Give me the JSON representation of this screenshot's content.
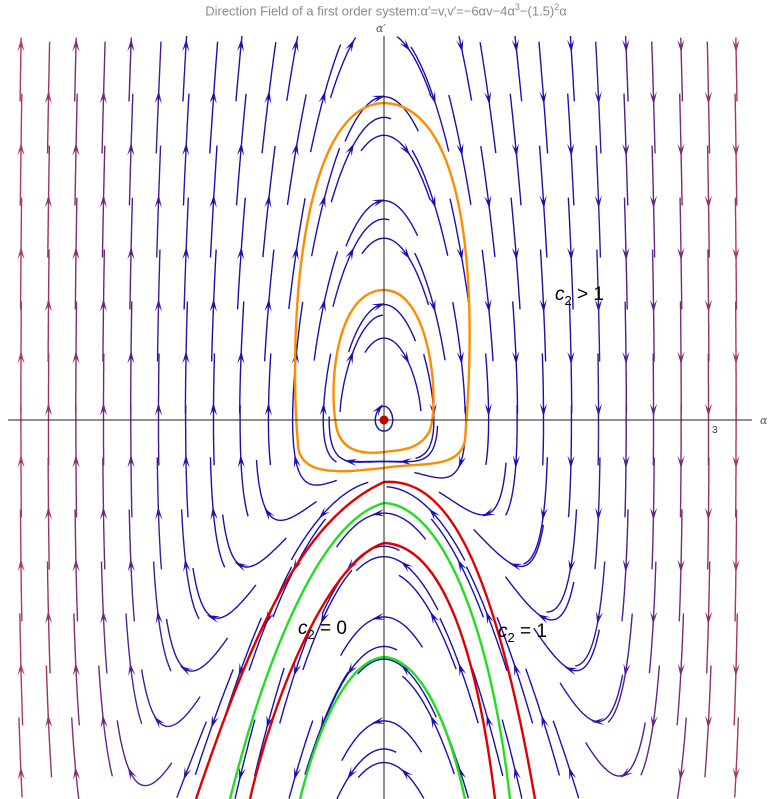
{
  "title_text": "Direction Field of a first order system:α′=v,v′=−6αv−4α³−(1.5)²α",
  "chart_data": {
    "type": "stream-plot",
    "title": "Direction Field of a first order system:α′=v,v′=−6αv−4α³−(1.5)²α",
    "system": {
      "dx": "v",
      "dv": "-6*a*v - 4*a^3 - 2.25*a"
    },
    "xlabel": "α",
    "ylabel": "α′",
    "x_range": [
      -3.6,
      3.5
    ],
    "y_range": [
      -3.7,
      3.7
    ],
    "x_ticks": [
      3
    ],
    "critical_point": [
      0,
      0
    ],
    "annotations": [
      {
        "text": "c₂ > 1",
        "x": 2.0,
        "y": 1.2
      },
      {
        "text": "c₂ = 0",
        "x": -0.8,
        "y": -2.0
      },
      {
        "text": "c₂ = 1",
        "x": 1.2,
        "y": -2.05
      }
    ],
    "colors": {
      "stream_blue": "#1a0fb0",
      "stream_far": "#b03a5a",
      "orange": "#ff8c00",
      "red": "#e00000",
      "green": "#22dd22",
      "point": "#c00000"
    }
  }
}
